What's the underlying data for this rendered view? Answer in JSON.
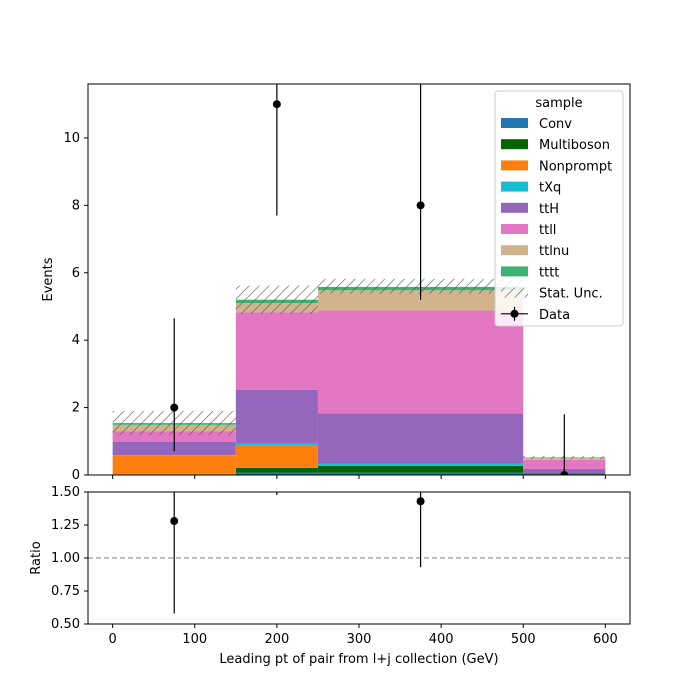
{
  "chart_data": [
    {
      "type": "bar",
      "stacked": true,
      "bin_edges": [
        0,
        150,
        250,
        500,
        600
      ],
      "xlim": [
        -30,
        630
      ],
      "ylim": [
        0,
        11.6
      ],
      "ylabel": "Events",
      "yticks": [
        0,
        2,
        4,
        6,
        8,
        10
      ],
      "series": [
        {
          "name": "Conv",
          "color": "#1f77b4",
          "values": [
            0.0,
            0.07,
            0.07,
            0.02
          ]
        },
        {
          "name": "Multiboson",
          "color": "#006400",
          "values": [
            0.02,
            0.14,
            0.2,
            0.03
          ]
        },
        {
          "name": "Nonprompt",
          "color": "#ff7f0e",
          "values": [
            0.55,
            0.68,
            0.0,
            0.0
          ]
        },
        {
          "name": "tXq",
          "color": "#17becf",
          "values": [
            0.02,
            0.06,
            0.06,
            0.01
          ]
        },
        {
          "name": "ttH",
          "color": "#9467bd",
          "values": [
            0.4,
            1.58,
            1.5,
            0.12
          ]
        },
        {
          "name": "ttll",
          "color": "#e377c2",
          "values": [
            0.3,
            2.3,
            3.05,
            0.27
          ]
        },
        {
          "name": "ttlnu",
          "color": "#d2b48c",
          "values": [
            0.2,
            0.27,
            0.6,
            0.05
          ]
        },
        {
          "name": "tttt",
          "color": "#3cb371",
          "values": [
            0.05,
            0.1,
            0.1,
            0.02
          ]
        }
      ],
      "stat_unc": {
        "label": "Stat. Unc.",
        "up": [
          1.9,
          5.62,
          5.82,
          0.57
        ],
        "down": [
          1.18,
          4.78,
          5.38,
          0.47
        ]
      },
      "data": {
        "label": "Data",
        "x": [
          75,
          200,
          375,
          550
        ],
        "y": [
          2,
          11,
          8,
          0
        ],
        "err_low": [
          1.3,
          3.3,
          2.8,
          0
        ],
        "err_high": [
          2.65,
          4.4,
          3.9,
          1.8
        ]
      },
      "legend": {
        "title": "sample",
        "placement": "top-right"
      }
    },
    {
      "type": "scatter",
      "xlabel": "Leading pt of pair from l+j collection (GeV)",
      "ylabel": "Ratio",
      "xlim": [
        -30,
        630
      ],
      "ylim": [
        0.5,
        1.5
      ],
      "xticks": [
        0,
        100,
        200,
        300,
        400,
        500,
        600
      ],
      "yticks": [
        "0.50",
        "0.75",
        "1.00",
        "1.25",
        "1.50"
      ],
      "reference_line": 1.0,
      "points": {
        "x": [
          75,
          375
        ],
        "y": [
          1.28,
          1.43
        ],
        "err_low": [
          0.7,
          0.5
        ],
        "err_high": [
          0.7,
          0.5
        ]
      },
      "tick_at_edge_x": [
        200
      ]
    }
  ]
}
